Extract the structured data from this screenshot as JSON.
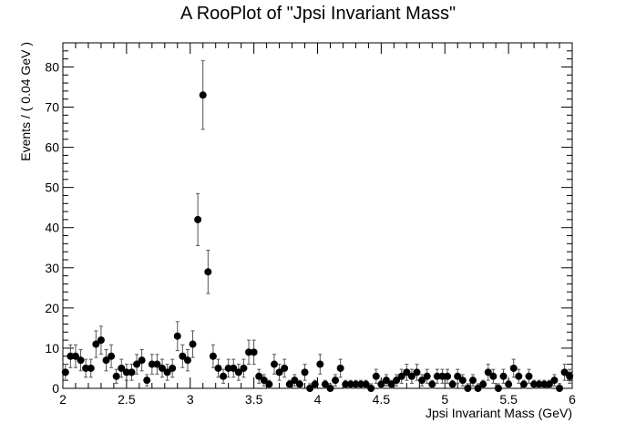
{
  "chart_data": {
    "type": "scatter",
    "title": "A RooPlot of \"Jpsi Invariant Mass\"",
    "xlabel": "Jpsi Invariant Mass (GeV)",
    "ylabel": "Events / ( 0.04 GeV )",
    "xlim": [
      2,
      6
    ],
    "ylim": [
      0,
      86
    ],
    "grid": false,
    "error_bars": "sqrt(N)",
    "xticks": [
      2,
      2.5,
      3,
      3.5,
      4,
      4.5,
      5,
      5.5,
      6
    ],
    "xtick_labels": [
      "2",
      "2.5",
      "3",
      "3.5",
      "4",
      "4.5",
      "5",
      "5.5",
      "6"
    ],
    "yticks": [
      0,
      10,
      20,
      30,
      40,
      50,
      60,
      70,
      80
    ],
    "ytick_labels": [
      "0",
      "10",
      "20",
      "30",
      "40",
      "50",
      "60",
      "70",
      "80"
    ],
    "x": [
      2.02,
      2.06,
      2.1,
      2.14,
      2.18,
      2.22,
      2.26,
      2.3,
      2.34,
      2.38,
      2.42,
      2.46,
      2.5,
      2.54,
      2.58,
      2.62,
      2.66,
      2.7,
      2.74,
      2.78,
      2.82,
      2.86,
      2.9,
      2.94,
      2.98,
      3.02,
      3.06,
      3.1,
      3.14,
      3.18,
      3.22,
      3.26,
      3.3,
      3.34,
      3.38,
      3.42,
      3.46,
      3.5,
      3.54,
      3.58,
      3.62,
      3.66,
      3.7,
      3.74,
      3.78,
      3.82,
      3.86,
      3.9,
      3.94,
      3.98,
      4.02,
      4.06,
      4.1,
      4.14,
      4.18,
      4.22,
      4.26,
      4.3,
      4.34,
      4.38,
      4.42,
      4.46,
      4.5,
      4.54,
      4.58,
      4.62,
      4.66,
      4.7,
      4.74,
      4.78,
      4.82,
      4.86,
      4.9,
      4.94,
      4.98,
      5.02,
      5.06,
      5.1,
      5.14,
      5.18,
      5.22,
      5.26,
      5.3,
      5.34,
      5.38,
      5.42,
      5.46,
      5.5,
      5.54,
      5.58,
      5.62,
      5.66,
      5.7,
      5.74,
      5.78,
      5.82,
      5.86,
      5.9,
      5.94,
      5.98
    ],
    "y": [
      4,
      8,
      8,
      7,
      5,
      5,
      11,
      12,
      7,
      8,
      3,
      5,
      4,
      4,
      6,
      7,
      2,
      6,
      6,
      5,
      4,
      5,
      13,
      8,
      7,
      11,
      42,
      73,
      29,
      8,
      5,
      3,
      5,
      5,
      4,
      5,
      9,
      9,
      3,
      2,
      1,
      6,
      4,
      5,
      1,
      2,
      1,
      4,
      0,
      1,
      6,
      1,
      0,
      2,
      5,
      1,
      1,
      1,
      1,
      1,
      0,
      3,
      1,
      2,
      1,
      2,
      3,
      4,
      3,
      4,
      2,
      3,
      1,
      3,
      3,
      3,
      1,
      3,
      2,
      0,
      2,
      0,
      1,
      4,
      3,
      0,
      3,
      1,
      5,
      3,
      1,
      3,
      1,
      1,
      1,
      1,
      2,
      0,
      4,
      3
    ]
  }
}
